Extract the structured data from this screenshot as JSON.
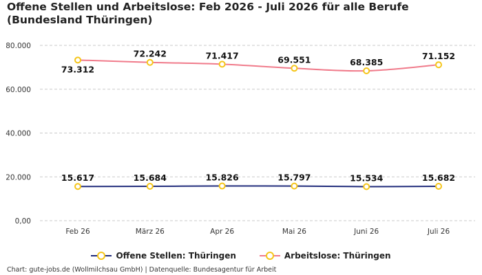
{
  "chart_data": {
    "type": "line",
    "title": "Offene Stellen und Arbeitslose: Feb 2026 - Juli 2026 für alle Berufe (Bundesland Thüringen)",
    "categories": [
      "Feb 26",
      "März 26",
      "Apr 26",
      "Mai 26",
      "Juni 26",
      "Juli 26"
    ],
    "series": [
      {
        "name": "Offene Stellen: Thüringen",
        "values": [
          15617,
          15684,
          15826,
          15797,
          15534,
          15682
        ],
        "labels": [
          "15.617",
          "15.684",
          "15.826",
          "15.797",
          "15.534",
          "15.682"
        ],
        "color": "#1f2a7a"
      },
      {
        "name": "Arbeitslose: Thüringen",
        "values": [
          73312,
          72242,
          71417,
          69551,
          68385,
          71152
        ],
        "labels": [
          "73.312",
          "72.242",
          "71.417",
          "69.551",
          "68.385",
          "71.152"
        ],
        "color": "#f07a8a"
      }
    ],
    "marker_color": "#f5c518",
    "ylim": [
      0,
      80000
    ],
    "yticks": [
      0,
      20000,
      40000,
      60000,
      80000
    ],
    "ytick_labels": [
      "0,00",
      "20.000",
      "40.000",
      "60.000",
      "80.000"
    ],
    "grid": "horizontal-dashed",
    "legend_position": "bottom-center"
  },
  "source_text": "Chart: gute-jobs.de (Wollmilchsau GmbH) | Datenquelle: Bundesagentur für Arbeit"
}
